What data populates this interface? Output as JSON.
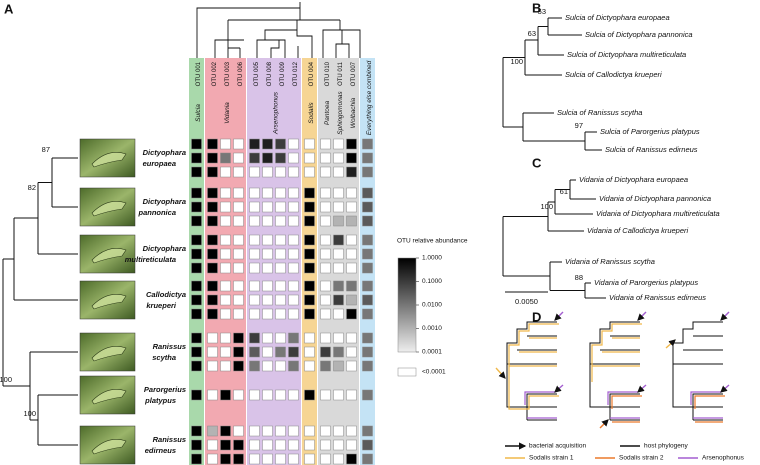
{
  "panel_labels": [
    "A",
    "B",
    "C",
    "D"
  ],
  "panel_a": {
    "groups": [
      {
        "name": "Sulcia",
        "otus": [
          "OTU 001"
        ],
        "color": "#a9d9ab"
      },
      {
        "name": "Vidania",
        "otus": [
          "OTU 002",
          "OTU 003",
          "OTU 006"
        ],
        "color": "#f2a9b1"
      },
      {
        "name": "Arsenophonus",
        "otus": [
          "OTU 005",
          "OTU 008",
          "OTU 009",
          "OTU 012"
        ],
        "color": "#d9c3e8"
      },
      {
        "name": "Sodalis",
        "otus": [
          "OTU 004"
        ],
        "color": "#f6d594"
      },
      {
        "name": "Pantoea",
        "otus": [
          "OTU 010"
        ],
        "color": "#d9d9d9"
      },
      {
        "name": "Sphingomonas",
        "otus": [
          "OTU 011"
        ],
        "color": "#d9d9d9"
      },
      {
        "name": "Wolbachia",
        "otus": [
          "OTU 007"
        ],
        "color": "#d9d9d9"
      },
      {
        "name": "Everything else combined",
        "otus": [],
        "color": "#c4e3f5"
      }
    ],
    "hosts": [
      {
        "genus": "Dictyophara",
        "species": "europaea",
        "rows": [
          [
            1,
            1,
            0,
            0,
            0.3,
            0.3,
            0.1,
            0,
            0,
            0,
            0,
            1,
            0.01
          ],
          [
            1,
            1,
            0.01,
            0,
            0.1,
            0.3,
            0.1,
            0,
            0,
            0,
            0,
            1,
            0.01
          ],
          [
            1,
            1,
            0,
            0,
            0,
            0,
            0,
            0,
            0,
            0,
            0,
            0.3,
            0.01
          ]
        ]
      },
      {
        "genus": "Dictyophara",
        "species": "pannonica",
        "rows": [
          [
            1,
            1,
            0,
            0,
            0,
            0,
            0,
            0,
            1,
            0,
            0,
            0,
            0.03
          ],
          [
            1,
            1,
            0,
            0,
            0,
            0,
            0,
            0,
            1,
            0,
            0,
            0,
            0.03
          ],
          [
            1,
            1,
            0,
            0,
            0,
            0,
            0,
            0,
            1,
            0,
            0.001,
            0.001,
            0.03
          ]
        ]
      },
      {
        "genus": "Dictyophara",
        "species": "multireticulata",
        "rows": [
          [
            1,
            1,
            0,
            0,
            0,
            0,
            0,
            0,
            1,
            0,
            0.1,
            0,
            0.01
          ],
          [
            1,
            1,
            0,
            0,
            0,
            0,
            0,
            0,
            1,
            0,
            0,
            0,
            0.01
          ],
          [
            1,
            1,
            0,
            0,
            0,
            0,
            0,
            0,
            1,
            0,
            0,
            0,
            0.01
          ]
        ]
      },
      {
        "genus": "Callodictya",
        "species": "krueperi",
        "rows": [
          [
            1,
            1,
            0,
            0,
            0,
            0,
            0,
            0,
            1,
            0,
            0.01,
            0.01,
            0.01
          ],
          [
            1,
            1,
            0,
            0,
            0,
            0,
            0,
            0,
            1,
            0,
            0.1,
            0.001,
            0.03
          ],
          [
            1,
            1,
            0,
            0,
            0,
            0,
            0,
            0,
            1,
            0,
            0,
            1,
            0.01
          ]
        ]
      },
      {
        "genus": "Ranissus",
        "species": "scytha",
        "rows": [
          [
            1,
            0,
            0,
            1,
            0.1,
            0,
            0,
            0.01,
            0,
            0,
            0,
            0,
            0.01
          ],
          [
            1,
            0,
            0,
            1,
            0.03,
            0,
            0.01,
            0.1,
            0,
            0.1,
            0.01,
            0,
            0.01
          ],
          [
            1,
            0,
            0,
            1,
            0.01,
            0,
            0,
            0.01,
            0,
            0.01,
            0.001,
            0,
            0.01
          ]
        ]
      },
      {
        "genus": "Parorgerius",
        "species": "platypus",
        "rows": [
          [
            1,
            0,
            1,
            0,
            0,
            0,
            0,
            0,
            1,
            0,
            0,
            0,
            0.01
          ]
        ]
      },
      {
        "genus": "Ranissus",
        "species": "edirneus",
        "rows": [
          [
            1,
            0.001,
            1,
            0,
            0,
            0,
            0,
            0,
            0,
            0,
            0,
            0,
            0.01
          ],
          [
            1,
            0,
            1,
            1,
            0,
            0,
            0,
            0,
            0,
            0,
            0,
            0,
            0.03
          ],
          [
            1,
            0,
            1,
            1,
            0,
            0,
            0,
            0,
            0,
            0,
            0,
            1,
            0.01
          ]
        ]
      }
    ],
    "bootstrap": [
      87,
      82,
      100,
      100
    ],
    "legend": {
      "title": "OTU relative abundance",
      "ticks": [
        {
          "value": 1,
          "label": "1.0000"
        },
        {
          "value": 0.1,
          "label": "0.1000"
        },
        {
          "value": 0.01,
          "label": "0.0100"
        },
        {
          "value": 0.001,
          "label": "0.0010"
        },
        {
          "value": 0.0001,
          "label": "0.0001"
        }
      ],
      "below_label": "<0.0001"
    }
  },
  "panel_b": {
    "tips": [
      "Sulcia of Dictyophara europaea",
      "Sulcia of Dictyophara pannonica",
      "Sulcia of Dictyophara multireticulata",
      "Sulcia of Callodictya krueperi",
      "Sulcia of Ranissus scytha",
      "Sulcia of Parorgerius platypus",
      "Sulcia of Ranissus edirneus"
    ],
    "bootstrap": [
      53,
      63,
      100,
      97
    ]
  },
  "panel_c": {
    "tips": [
      "Vidania of Dictyophara europaea",
      "Vidania of Dictyophara pannonica",
      "Vidania of Dictyophara multireticulata",
      "Vidania of Callodictya krueperi",
      "Vidania of Ranissus scytha",
      "Vidania of Parorgerius platypus",
      "Vidania of Ranissus edirneus"
    ],
    "bootstrap": [
      61,
      100,
      88
    ],
    "scale_bar": {
      "value": 0.005,
      "label": "0.0050"
    }
  },
  "panel_d": {
    "legend": [
      {
        "label": "bacterial acquisition",
        "color": "#111111"
      },
      {
        "label": "host phylogeny",
        "color": "#111111"
      },
      {
        "label": "Sodalis strain 1",
        "color": "#f0b84a"
      },
      {
        "label": "Sodalis strain 2",
        "color": "#ec7a2c"
      },
      {
        "label": "Arsenophonus",
        "color": "#a35ed0"
      }
    ]
  }
}
